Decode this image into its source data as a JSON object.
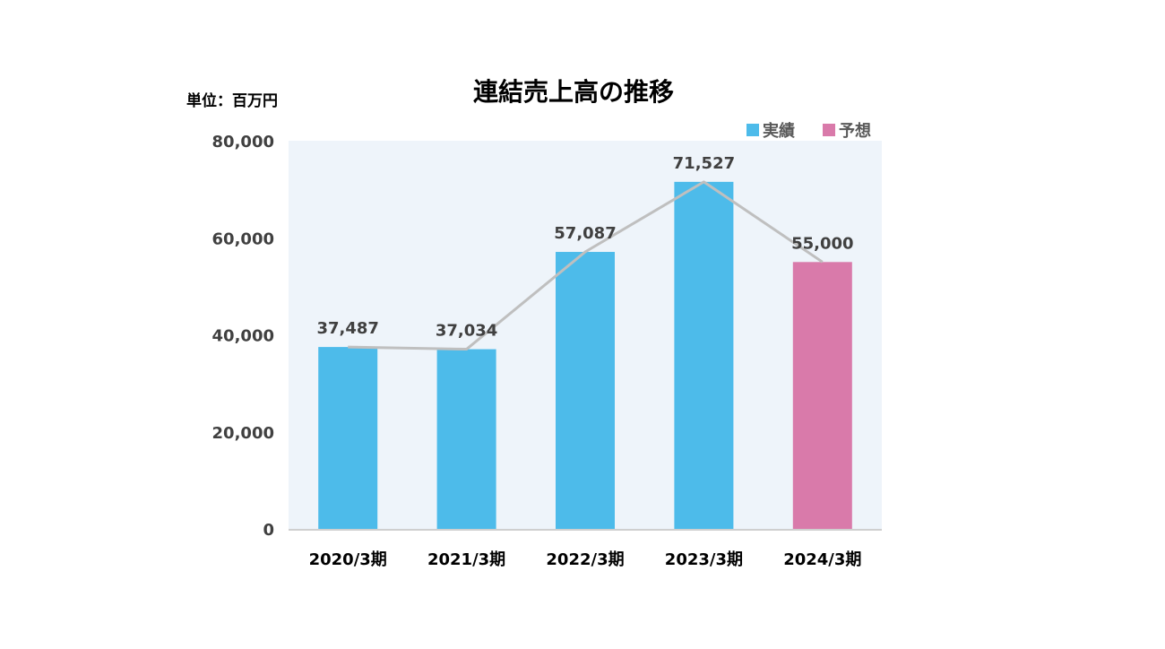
{
  "chart_data": {
    "type": "bar",
    "title": "連結売上高の推移",
    "unit_label": "単位：百万円",
    "categories": [
      "2020/3期",
      "2021/3期",
      "2022/3期",
      "2023/3期",
      "2024/3期"
    ],
    "values": [
      37487,
      37034,
      57087,
      71527,
      55000
    ],
    "value_labels": [
      "37,487",
      "37,034",
      "57,087",
      "71,527",
      "55,000"
    ],
    "bar_kind": [
      "actual",
      "actual",
      "actual",
      "actual",
      "forecast"
    ],
    "overlay_line": true,
    "ylim": [
      0,
      80000
    ],
    "yticks": [
      0,
      20000,
      40000,
      60000,
      80000
    ],
    "ytick_labels": [
      "0",
      "20,000",
      "40,000",
      "60,000",
      "80,000"
    ],
    "grid": false,
    "legend_position": "top-right",
    "legend": [
      {
        "key": "actual",
        "label": "実績"
      },
      {
        "key": "forecast",
        "label": "予想"
      }
    ],
    "colors": {
      "actual": "#4DBBEA",
      "forecast": "#D97AAA",
      "line": "#BFBFBF",
      "plot_bg": "#EEF4FA",
      "text": "#404040",
      "title": "#000000"
    }
  }
}
